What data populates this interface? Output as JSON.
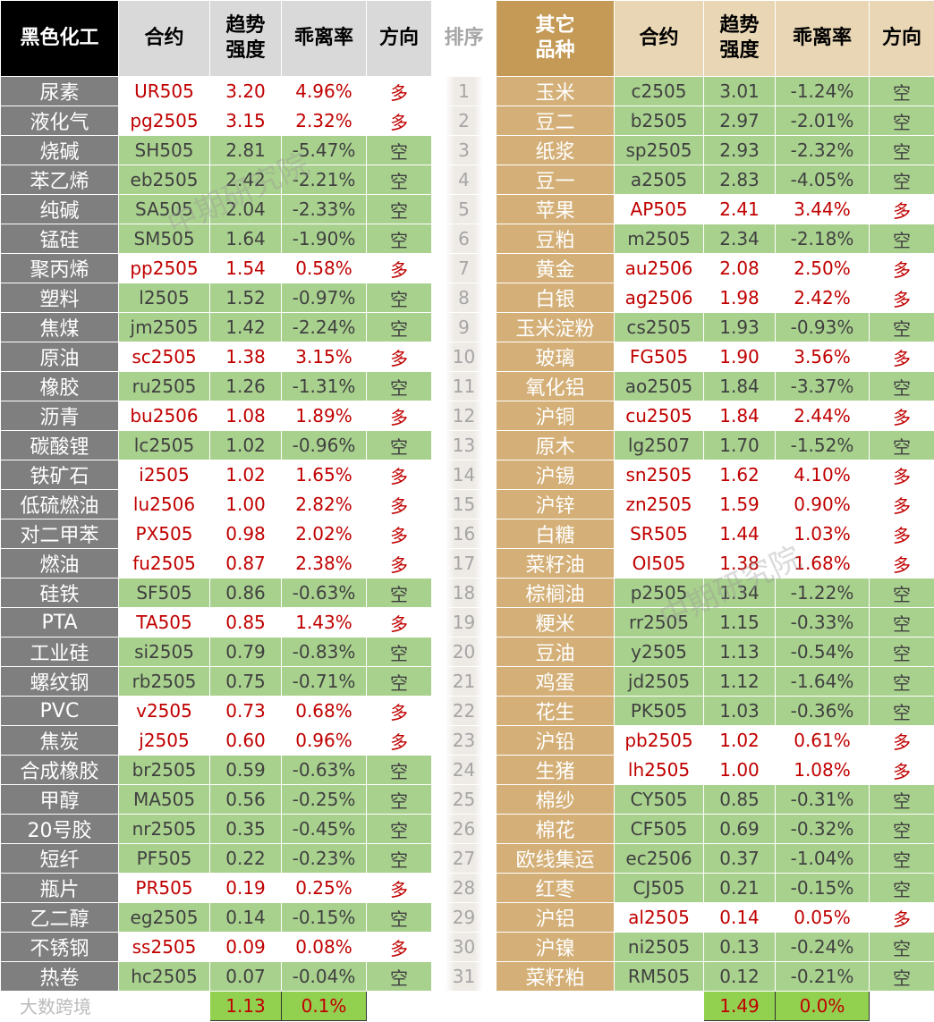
{
  "header": {
    "left": [
      "黑色化工",
      "合约",
      "趋势强度",
      "乖离率",
      "方向"
    ],
    "rank": "排序",
    "right": [
      "其它品种",
      "合约",
      "趋势强度",
      "乖离率",
      "方向"
    ]
  },
  "ranks": [
    1,
    2,
    3,
    4,
    5,
    6,
    7,
    8,
    9,
    10,
    11,
    12,
    13,
    14,
    15,
    16,
    17,
    18,
    19,
    20,
    21,
    22,
    23,
    24,
    25,
    26,
    27,
    28,
    29,
    30,
    31
  ],
  "left_rows": [
    [
      "尿素",
      "UR505",
      "3.20",
      "4.96%",
      "多"
    ],
    [
      "液化气",
      "pg2505",
      "3.15",
      "2.32%",
      "多"
    ],
    [
      "烧碱",
      "SH505",
      "2.81",
      "-5.47%",
      "空"
    ],
    [
      "苯乙烯",
      "eb2505",
      "2.42",
      "-2.21%",
      "空"
    ],
    [
      "纯碱",
      "SA505",
      "2.04",
      "-2.33%",
      "空"
    ],
    [
      "锰硅",
      "SM505",
      "1.64",
      "-1.90%",
      "空"
    ],
    [
      "聚丙烯",
      "pp2505",
      "1.54",
      "0.58%",
      "多"
    ],
    [
      "塑料",
      "l2505",
      "1.52",
      "-0.97%",
      "空"
    ],
    [
      "焦煤",
      "jm2505",
      "1.42",
      "-2.24%",
      "空"
    ],
    [
      "原油",
      "sc2505",
      "1.38",
      "3.15%",
      "多"
    ],
    [
      "橡胶",
      "ru2505",
      "1.26",
      "-1.31%",
      "空"
    ],
    [
      "沥青",
      "bu2506",
      "1.08",
      "1.89%",
      "多"
    ],
    [
      "碳酸锂",
      "lc2505",
      "1.02",
      "-0.96%",
      "空"
    ],
    [
      "铁矿石",
      "i2505",
      "1.02",
      "1.65%",
      "多"
    ],
    [
      "低硫燃油",
      "lu2506",
      "1.00",
      "2.82%",
      "多"
    ],
    [
      "对二甲苯",
      "PX505",
      "0.98",
      "2.02%",
      "多"
    ],
    [
      "燃油",
      "fu2505",
      "0.87",
      "2.38%",
      "多"
    ],
    [
      "硅铁",
      "SF505",
      "0.86",
      "-0.63%",
      "空"
    ],
    [
      "PTA",
      "TA505",
      "0.85",
      "1.43%",
      "多"
    ],
    [
      "工业硅",
      "si2505",
      "0.79",
      "-0.83%",
      "空"
    ],
    [
      "螺纹钢",
      "rb2505",
      "0.75",
      "-0.71%",
      "空"
    ],
    [
      "PVC",
      "v2505",
      "0.73",
      "0.68%",
      "多"
    ],
    [
      "焦炭",
      "j2505",
      "0.60",
      "0.96%",
      "多"
    ],
    [
      "合成橡胶",
      "br2505",
      "0.59",
      "-0.63%",
      "空"
    ],
    [
      "甲醇",
      "MA505",
      "0.56",
      "-0.25%",
      "空"
    ],
    [
      "20号胶",
      "nr2505",
      "0.35",
      "-0.45%",
      "空"
    ],
    [
      "短纤",
      "PF505",
      "0.22",
      "-0.23%",
      "空"
    ],
    [
      "瓶片",
      "PR505",
      "0.19",
      "0.25%",
      "多"
    ],
    [
      "乙二醇",
      "eg2505",
      "0.14",
      "-0.15%",
      "空"
    ],
    [
      "不锈钢",
      "ss2505",
      "0.09",
      "0.08%",
      "多"
    ],
    [
      "热卷",
      "hc2505",
      "0.07",
      "-0.04%",
      "空"
    ]
  ],
  "right_rows": [
    [
      "玉米",
      "c2505",
      "3.01",
      "-1.24%",
      "空"
    ],
    [
      "豆二",
      "b2505",
      "2.97",
      "-2.01%",
      "空"
    ],
    [
      "纸浆",
      "sp2505",
      "2.93",
      "-2.32%",
      "空"
    ],
    [
      "豆一",
      "a2505",
      "2.83",
      "-4.05%",
      "空"
    ],
    [
      "苹果",
      "AP505",
      "2.41",
      "3.44%",
      "多"
    ],
    [
      "豆粕",
      "m2505",
      "2.34",
      "-2.18%",
      "空"
    ],
    [
      "黄金",
      "au2506",
      "2.08",
      "2.50%",
      "多"
    ],
    [
      "白银",
      "ag2506",
      "1.98",
      "2.42%",
      "多"
    ],
    [
      "玉米淀粉",
      "cs2505",
      "1.93",
      "-0.93%",
      "空"
    ],
    [
      "玻璃",
      "FG505",
      "1.90",
      "3.56%",
      "多"
    ],
    [
      "氧化铝",
      "ao2505",
      "1.84",
      "-3.37%",
      "空"
    ],
    [
      "沪铜",
      "cu2505",
      "1.84",
      "2.44%",
      "多"
    ],
    [
      "原木",
      "lg2507",
      "1.70",
      "-1.52%",
      "空"
    ],
    [
      "沪锡",
      "sn2505",
      "1.62",
      "4.10%",
      "多"
    ],
    [
      "沪锌",
      "zn2505",
      "1.59",
      "0.90%",
      "多"
    ],
    [
      "白糖",
      "SR505",
      "1.44",
      "1.03%",
      "多"
    ],
    [
      "菜籽油",
      "OI505",
      "1.38",
      "1.68%",
      "多"
    ],
    [
      "棕榈油",
      "p2505",
      "1.34",
      "-1.22%",
      "空"
    ],
    [
      "粳米",
      "rr2505",
      "1.15",
      "-0.33%",
      "空"
    ],
    [
      "豆油",
      "y2505",
      "1.13",
      "-0.54%",
      "空"
    ],
    [
      "鸡蛋",
      "jd2505",
      "1.12",
      "-1.64%",
      "空"
    ],
    [
      "花生",
      "PK505",
      "1.03",
      "-0.36%",
      "空"
    ],
    [
      "沪铅",
      "pb2505",
      "1.02",
      "0.61%",
      "多"
    ],
    [
      "生猪",
      "lh2505",
      "1.00",
      "1.08%",
      "多"
    ],
    [
      "棉纱",
      "CY505",
      "0.85",
      "-0.31%",
      "空"
    ],
    [
      "棉花",
      "CF505",
      "0.69",
      "-0.32%",
      "空"
    ],
    [
      "欧线集运",
      "ec2506",
      "0.37",
      "-1.04%",
      "空"
    ],
    [
      "红枣",
      "CJ505",
      "0.21",
      "-0.15%",
      "空"
    ],
    [
      "沪铝",
      "al2505",
      "0.14",
      "0.05%",
      "多"
    ],
    [
      "沪镍",
      "ni2505",
      "0.13",
      "-0.24%",
      "空"
    ],
    [
      "菜籽粕",
      "RM505",
      "0.12",
      "-0.21%",
      "空"
    ]
  ],
  "footer": {
    "left": [
      "1.13",
      "0.1%"
    ],
    "right": [
      "1.49",
      "0.0%"
    ]
  },
  "watermarks": [
    "中期研究院",
    "中期研究院",
    "大数跨境"
  ]
}
